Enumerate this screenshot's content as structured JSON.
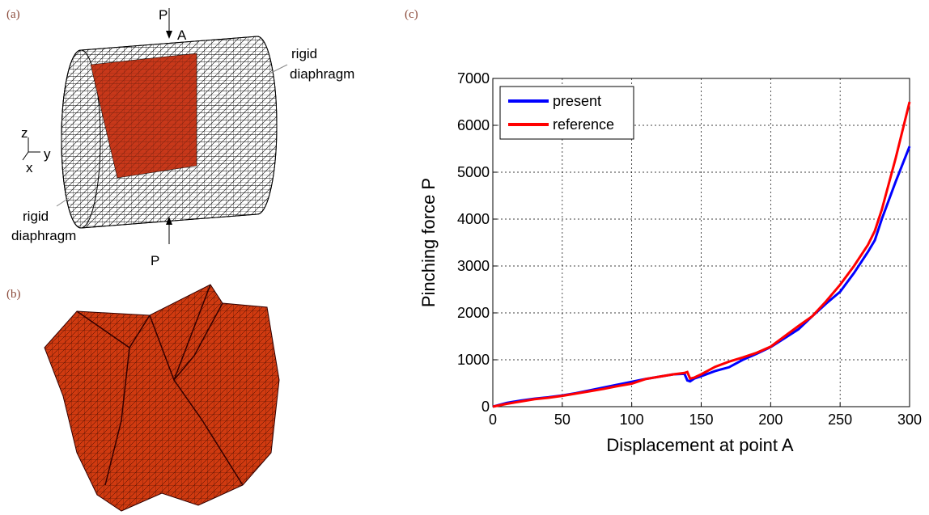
{
  "figure": {
    "panel_a": {
      "label": "(a)",
      "force_top": "P",
      "point": "A",
      "diaphragm_right": [
        "rigid",
        "diaphragm"
      ],
      "axis_z": "z",
      "axis_y": "y",
      "axis_x": "x",
      "diaphragm_left": [
        "rigid",
        "diaphragm"
      ],
      "force_bottom": "P"
    },
    "panel_b": {
      "label": "(b)"
    },
    "panel_c": {
      "label": "(c)"
    }
  },
  "chart_data": {
    "type": "line",
    "x_label": "Displacement at point A",
    "y_label": "Pinching force P",
    "x": [
      0,
      10,
      20,
      30,
      40,
      50,
      60,
      70,
      80,
      90,
      100,
      110,
      120,
      130,
      138,
      140,
      142,
      145,
      150,
      160,
      170,
      180,
      190,
      200,
      210,
      220,
      230,
      240,
      250,
      260,
      270,
      275,
      280,
      290,
      300
    ],
    "series": [
      {
        "name": "present",
        "color": "#0000ff",
        "values": [
          0,
          80,
          130,
          170,
          200,
          240,
          290,
          350,
          410,
          470,
          530,
          590,
          640,
          690,
          700,
          560,
          540,
          600,
          650,
          760,
          840,
          1000,
          1130,
          1270,
          1460,
          1650,
          1930,
          2200,
          2450,
          2850,
          3300,
          3550,
          4000,
          4800,
          5550
        ]
      },
      {
        "name": "reference",
        "color": "#ff0000",
        "values": [
          0,
          60,
          110,
          160,
          190,
          230,
          280,
          330,
          380,
          440,
          490,
          590,
          640,
          690,
          720,
          740,
          600,
          620,
          690,
          850,
          960,
          1050,
          1150,
          1280,
          1500,
          1720,
          1930,
          2250,
          2600,
          3000,
          3450,
          3750,
          4200,
          5300,
          6500
        ]
      }
    ],
    "xlim": [
      0,
      300
    ],
    "xticks": [
      0,
      50,
      100,
      150,
      200,
      250,
      300
    ],
    "ylim": [
      0,
      7000
    ],
    "yticks": [
      0,
      1000,
      2000,
      3000,
      4000,
      5000,
      6000,
      7000
    ],
    "grid": true,
    "legend": "upper-left"
  }
}
